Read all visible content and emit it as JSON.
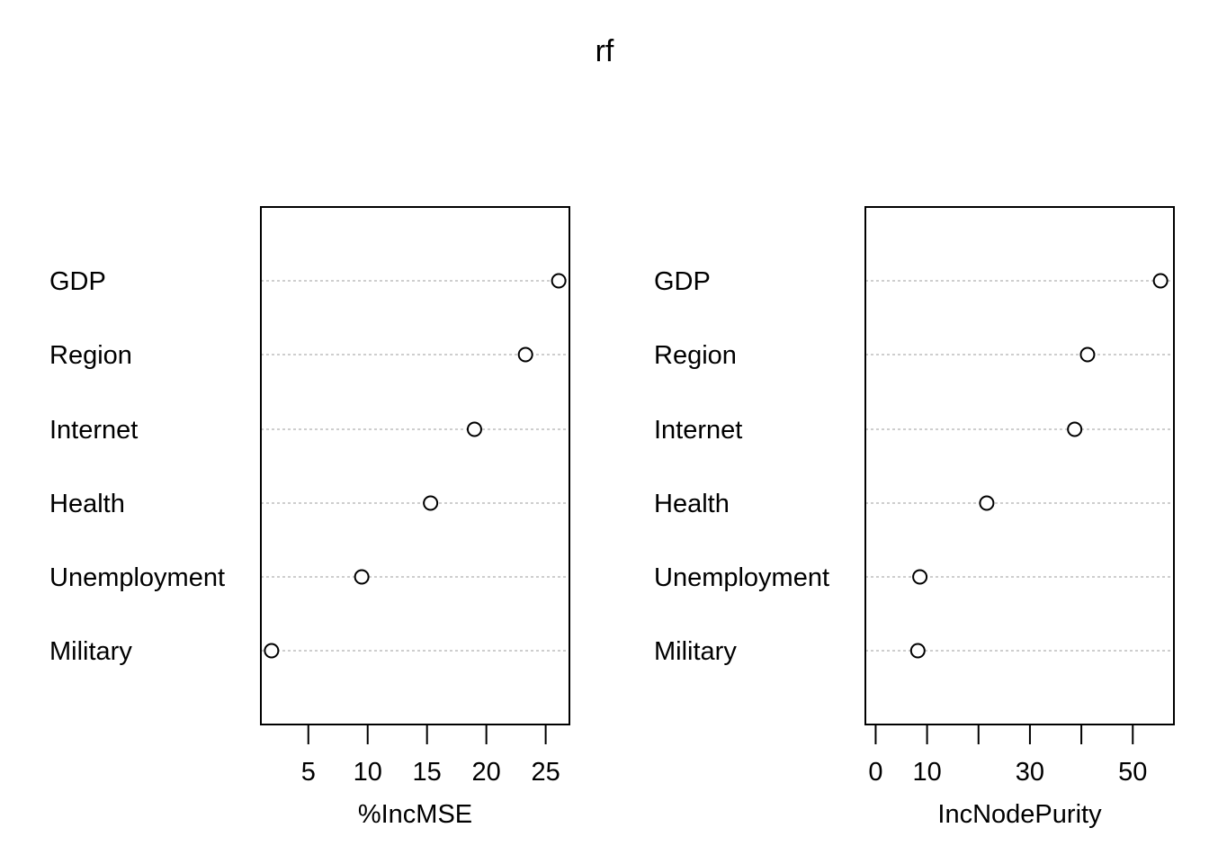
{
  "chart_data": {
    "title": "rf",
    "type": "scatter",
    "subtype": "dotchart",
    "categories": [
      "GDP",
      "Region",
      "Internet",
      "Health",
      "Unemployment",
      "Military"
    ],
    "panels": [
      {
        "xlabel": "%IncMSE",
        "xlim": [
          1.0,
          27.0
        ],
        "ticks": [
          5,
          10,
          15,
          20,
          25
        ],
        "tick_labels": [
          "5",
          "10",
          "15",
          "20",
          "25"
        ],
        "values": [
          26.1,
          23.3,
          19.0,
          15.3,
          9.5,
          1.9
        ]
      },
      {
        "xlabel": "IncNodePurity",
        "xlim": [
          -2.0,
          58.0
        ],
        "ticks": [
          0,
          10,
          20,
          30,
          40,
          50
        ],
        "tick_labels": [
          "0",
          "10",
          "",
          "30",
          "",
          "50"
        ],
        "values": [
          55.4,
          41.2,
          38.7,
          21.6,
          8.6,
          8.2
        ]
      }
    ],
    "marker": "open-circle",
    "grid": "dotted horizontal guide lines",
    "legend": "none",
    "colors": {
      "ink": "#000000",
      "guide": "#bebebe"
    }
  }
}
